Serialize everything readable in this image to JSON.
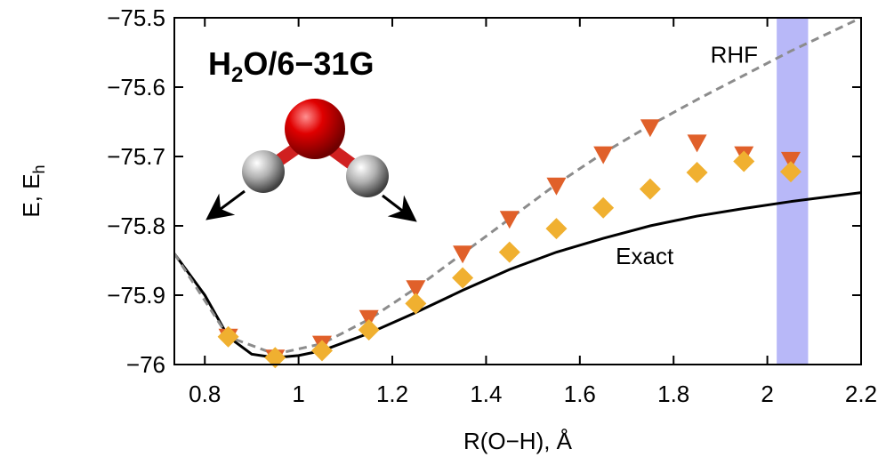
{
  "chart_data": {
    "type": "line",
    "title_parts": [
      "H",
      "2",
      "O/6−31G"
    ],
    "y_label_parts": [
      "E, E",
      "h"
    ],
    "x_label": "R(O−H), Å",
    "xlim": [
      0.735,
      2.2
    ],
    "ylim": [
      -76,
      -75.5
    ],
    "xticks": [
      0.8,
      1,
      1.2,
      1.4,
      1.6,
      1.8,
      2,
      2.2
    ],
    "yticks": [
      {
        "value": -76,
        "label": "−76"
      },
      {
        "value": -75.9,
        "label": "−75.9"
      },
      {
        "value": -75.8,
        "label": "−75.8"
      },
      {
        "value": -75.7,
        "label": "−75.7"
      },
      {
        "value": -75.6,
        "label": "−75.6"
      },
      {
        "value": -75.5,
        "label": "−75.5"
      }
    ],
    "highlight_band": [
      2.02,
      2.087
    ],
    "highlight_color": "#b8b8f8",
    "series": [
      {
        "name": "Exact",
        "style": "solid",
        "color": "#000000",
        "x": [
          0.735,
          0.8,
          0.85,
          0.9,
          0.95,
          1.0,
          1.05,
          1.15,
          1.25,
          1.35,
          1.45,
          1.55,
          1.65,
          1.75,
          1.85,
          1.95,
          2.05,
          2.2
        ],
        "values": [
          -75.84,
          -75.9,
          -75.96,
          -75.985,
          -75.99,
          -75.987,
          -75.98,
          -75.955,
          -75.925,
          -75.893,
          -75.863,
          -75.838,
          -75.818,
          -75.8,
          -75.786,
          -75.775,
          -75.765,
          -75.752
        ]
      },
      {
        "name": "RHF",
        "style": "dashed",
        "color": "#8c8c8c",
        "x": [
          0.735,
          0.85,
          0.95,
          1.05,
          1.15,
          1.25,
          1.35,
          1.45,
          1.55,
          1.65,
          1.75,
          1.85,
          1.95,
          2.05,
          2.2
        ],
        "values": [
          -75.84,
          -75.96,
          -75.985,
          -75.97,
          -75.935,
          -75.89,
          -75.84,
          -75.79,
          -75.74,
          -75.695,
          -75.655,
          -75.618,
          -75.583,
          -75.548,
          -75.5
        ]
      },
      {
        "marker": "triangle",
        "color": "#e0602a",
        "x": [
          0.85,
          0.95,
          1.05,
          1.15,
          1.25,
          1.35,
          1.45,
          1.55,
          1.65,
          1.75,
          1.85,
          1.95,
          2.05
        ],
        "values": [
          -75.96,
          -75.99,
          -75.97,
          -75.933,
          -75.89,
          -75.84,
          -75.79,
          -75.742,
          -75.697,
          -75.658,
          -75.68,
          -75.697,
          -75.705
        ]
      },
      {
        "marker": "diamond",
        "color": "#f0b030",
        "x": [
          0.85,
          0.95,
          1.05,
          1.15,
          1.25,
          1.35,
          1.45,
          1.55,
          1.65,
          1.75,
          1.85,
          1.95,
          2.05
        ],
        "values": [
          -75.96,
          -75.99,
          -75.98,
          -75.95,
          -75.912,
          -75.875,
          -75.838,
          -75.804,
          -75.774,
          -75.747,
          -75.723,
          -75.707,
          -75.722
        ]
      }
    ],
    "annotations": [
      {
        "series": 1,
        "x": 1.98,
        "y": -75.565
      },
      {
        "series": 0,
        "x": 1.8,
        "y": -75.855
      }
    ]
  }
}
